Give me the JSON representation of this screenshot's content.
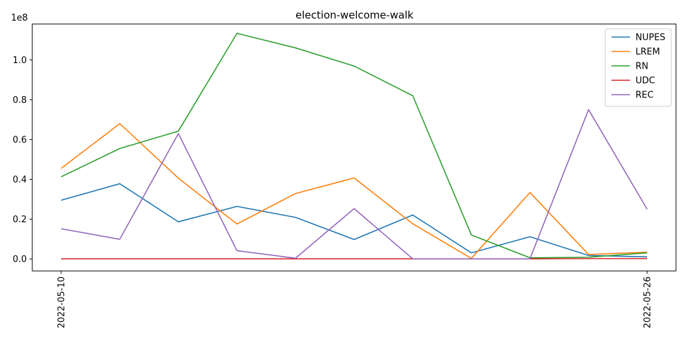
{
  "chart_data": {
    "type": "line",
    "title": "election-welcome-walk",
    "xlabel": "",
    "ylabel": "",
    "y_scale_label": "1e8",
    "x_tick_labels": [
      "2022-05-10",
      "2022-05-26"
    ],
    "y_ticks": [
      0.0,
      0.2,
      0.4,
      0.6,
      0.8,
      1.0
    ],
    "y_tick_labels": [
      "0.0",
      "0.2",
      "0.4",
      "0.6",
      "0.8",
      "1.0"
    ],
    "ylim": [
      -0.06,
      1.18
    ],
    "grid": false,
    "legend_position": "top-right",
    "series": [
      {
        "name": "NUPES",
        "color": "#1f77b4",
        "values": [
          0.295,
          0.378,
          0.187,
          0.264,
          0.209,
          0.098,
          0.221,
          0.031,
          0.112,
          0.018,
          0.011
        ]
      },
      {
        "name": "LREM",
        "color": "#ff7f0e",
        "values": [
          0.455,
          0.68,
          0.406,
          0.176,
          0.329,
          0.407,
          0.177,
          0.003,
          0.334,
          0.023,
          0.034
        ]
      },
      {
        "name": "RN",
        "color": "#2ca02c",
        "values": [
          0.413,
          0.555,
          0.642,
          1.133,
          1.06,
          0.969,
          0.82,
          0.121,
          0.006,
          0.009,
          0.031
        ]
      },
      {
        "name": "UDC",
        "color": "#d62728",
        "values": [
          0.001,
          0.001,
          0.001,
          0.001,
          0.001,
          0.001,
          0.001,
          0.001,
          0.001,
          0.002,
          0.002
        ]
      },
      {
        "name": "REC",
        "color": "#9467bd",
        "values": [
          0.152,
          0.099,
          0.63,
          0.042,
          0.004,
          0.253,
          0.001,
          0.001,
          0.001,
          0.75,
          0.25
        ]
      }
    ]
  }
}
